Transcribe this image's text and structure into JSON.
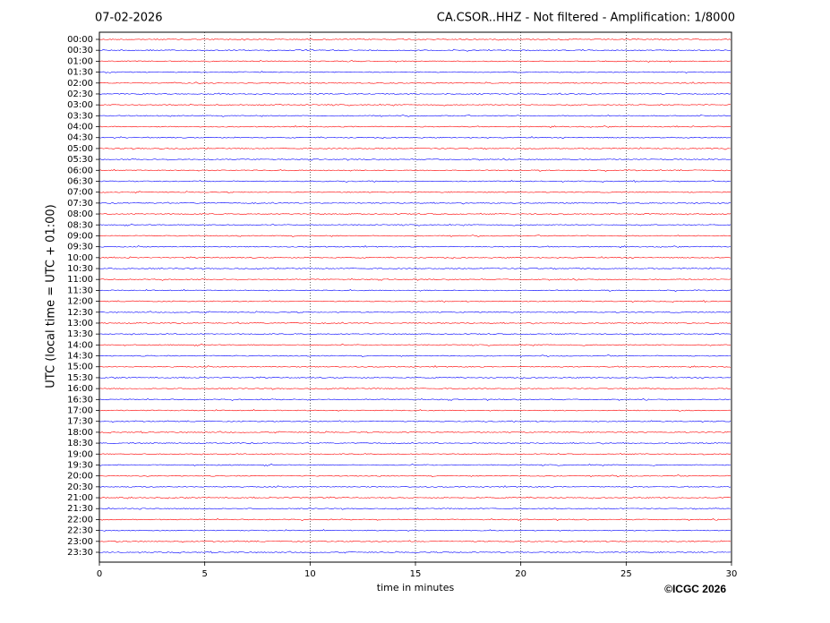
{
  "chart_data": {
    "type": "helicorder",
    "title_left": "07-02-2026",
    "title": "CA.CSOR..HHZ - Not filtered - Amplification: 1/8000",
    "ylabel": "UTC (local time = UTC + 01:00)",
    "xlabel": "time in minutes",
    "copyright": "©ICGC 2026",
    "categories": [
      "00:00",
      "00:30",
      "01:00",
      "01:30",
      "02:00",
      "02:30",
      "03:00",
      "03:30",
      "04:00",
      "04:30",
      "05:00",
      "05:30",
      "06:00",
      "06:30",
      "07:00",
      "07:30",
      "08:00",
      "08:30",
      "09:00",
      "09:30",
      "10:00",
      "10:30",
      "11:00",
      "11:30",
      "12:00",
      "12:30",
      "13:00",
      "13:30",
      "14:00",
      "14:30",
      "15:00",
      "15:30",
      "16:00",
      "16:30",
      "17:00",
      "17:30",
      "18:00",
      "18:30",
      "19:00",
      "19:30",
      "20:00",
      "20:30",
      "21:00",
      "21:30",
      "22:00",
      "22:30",
      "23:00",
      "23:30"
    ],
    "colors": [
      "#ff0000",
      "#0000ff"
    ],
    "xlim": [
      0,
      30
    ],
    "xticks": [
      0,
      5,
      10,
      15,
      20,
      25,
      30
    ],
    "grid": true
  }
}
